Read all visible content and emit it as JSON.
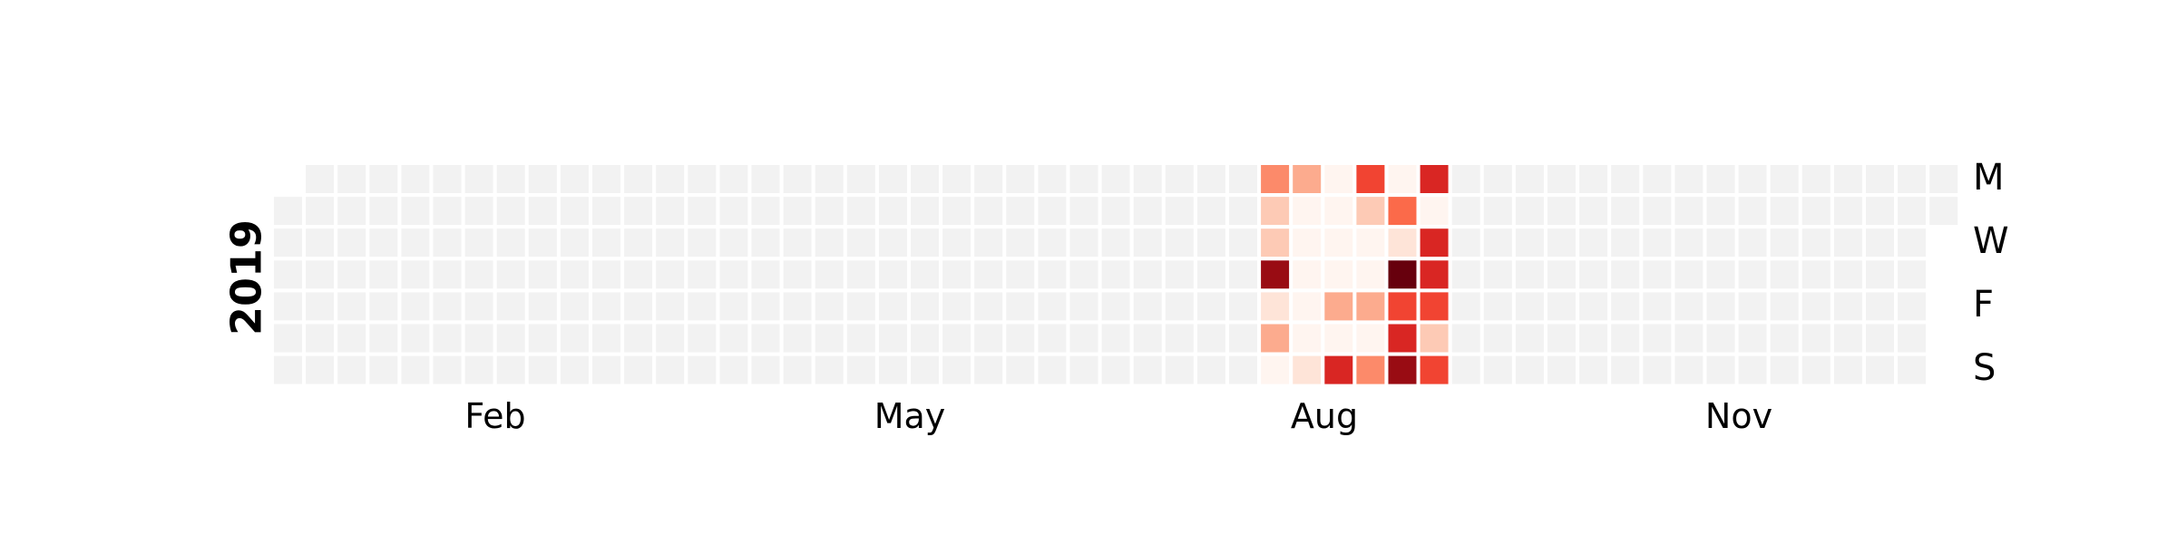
{
  "chart_data": {
    "type": "heatmap",
    "title": "",
    "year": "2019",
    "colormap": "Reds",
    "empty_color": "#f2f2f2",
    "month_labels": [
      "Feb",
      "May",
      "Aug",
      "Nov"
    ],
    "day_labels": [
      "M",
      "W",
      "F",
      "S"
    ],
    "value_range": [
      0,
      10
    ],
    "weeks": [
      "2019-07-29",
      "2019-08-05",
      "2019-08-12",
      "2019-08-19",
      "2019-08-26",
      "2019-09-02"
    ],
    "weekdays": [
      "Mon",
      "Tue",
      "Wed",
      "Thu",
      "Fri",
      "Sat",
      "Sun"
    ],
    "values": [
      [
        4,
        2,
        2,
        9,
        1,
        3,
        0
      ],
      [
        3,
        0,
        0,
        0,
        0,
        0,
        1
      ],
      [
        0,
        0,
        0,
        0,
        3,
        0,
        7
      ],
      [
        6,
        2,
        0,
        0,
        3,
        0,
        4
      ],
      [
        0,
        5,
        1,
        10,
        6,
        7,
        9
      ],
      [
        7,
        0,
        7,
        7,
        6,
        2,
        6
      ]
    ]
  }
}
